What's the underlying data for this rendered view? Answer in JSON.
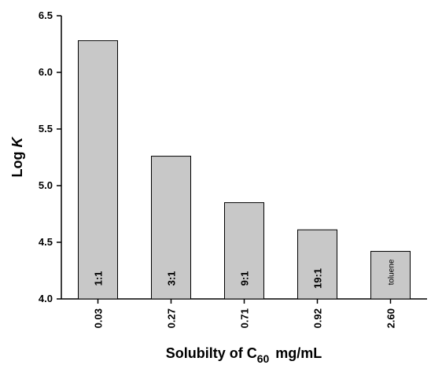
{
  "chart_data": {
    "type": "bar",
    "categories": [
      "0.03",
      "0.27",
      "0.71",
      "0.92",
      "2.60"
    ],
    "values": [
      6.28,
      5.26,
      4.85,
      4.61,
      4.42
    ],
    "bar_labels": [
      "1:1",
      "3:1",
      "9:1",
      "19:1",
      "toluene"
    ],
    "xlabel_parts": {
      "main": "Solubilty of C",
      "sub": "60",
      "unit": "mg/mL"
    },
    "ylabel_parts": {
      "main": "Log ",
      "italic": "K"
    },
    "ylim": [
      4.0,
      6.5
    ],
    "yticks": [
      "4.0",
      "4.5",
      "5.0",
      "5.5",
      "6.0",
      "6.5"
    ],
    "grid": false,
    "bar_color": "#c8c8c8"
  }
}
